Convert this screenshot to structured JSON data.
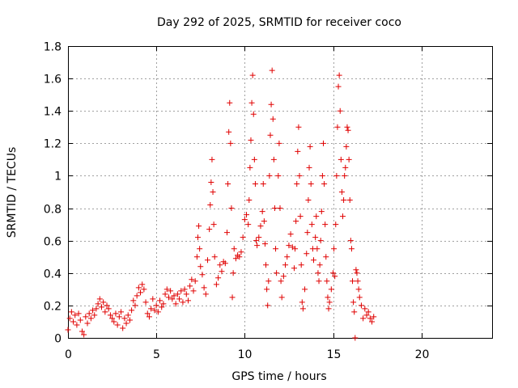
{
  "chart_data": {
    "type": "scatter",
    "title": "Day 292 of 2025, SRMTID for receiver coco",
    "xlabel": "GPS time / hours",
    "ylabel": "SRMTID / TECUs",
    "xlim": [
      0,
      24
    ],
    "ylim": [
      0,
      1.8
    ],
    "xticks": [
      0,
      5,
      10,
      15,
      20
    ],
    "xtick_labels": [
      "0",
      "5",
      "10",
      "15",
      "20"
    ],
    "yticks": [
      0,
      0.2,
      0.4,
      0.6,
      0.8,
      1.0,
      1.2,
      1.4,
      1.6,
      1.8
    ],
    "ytick_labels": [
      "0",
      "0.2",
      "0.4",
      "0.6",
      "0.8",
      "1",
      "1.2",
      "1.4",
      "1.6",
      "1.8"
    ],
    "grid": true,
    "marker": "+",
    "marker_color": "#e00000",
    "series": [
      {
        "name": "SRMTID",
        "points": [
          [
            0.0,
            0.05
          ],
          [
            0.1,
            0.12
          ],
          [
            0.2,
            0.16
          ],
          [
            0.3,
            0.1
          ],
          [
            0.4,
            0.14
          ],
          [
            0.5,
            0.08
          ],
          [
            0.6,
            0.15
          ],
          [
            0.7,
            0.11
          ],
          [
            0.8,
            0.04
          ],
          [
            0.9,
            0.02
          ],
          [
            1.0,
            0.13
          ],
          [
            1.1,
            0.09
          ],
          [
            1.2,
            0.15
          ],
          [
            1.3,
            0.12
          ],
          [
            1.4,
            0.17
          ],
          [
            1.5,
            0.14
          ],
          [
            1.6,
            0.18
          ],
          [
            1.7,
            0.21
          ],
          [
            1.8,
            0.24
          ],
          [
            1.9,
            0.19
          ],
          [
            2.0,
            0.22
          ],
          [
            2.1,
            0.16
          ],
          [
            2.2,
            0.2
          ],
          [
            2.3,
            0.18
          ],
          [
            2.4,
            0.14
          ],
          [
            2.5,
            0.12
          ],
          [
            2.6,
            0.1
          ],
          [
            2.7,
            0.15
          ],
          [
            2.8,
            0.08
          ],
          [
            2.9,
            0.13
          ],
          [
            3.0,
            0.16
          ],
          [
            3.1,
            0.06
          ],
          [
            3.2,
            0.12
          ],
          [
            3.3,
            0.09
          ],
          [
            3.4,
            0.14
          ],
          [
            3.5,
            0.11
          ],
          [
            3.6,
            0.17
          ],
          [
            3.7,
            0.23
          ],
          [
            3.8,
            0.2
          ],
          [
            3.9,
            0.26
          ],
          [
            4.0,
            0.31
          ],
          [
            4.1,
            0.28
          ],
          [
            4.2,
            0.33
          ],
          [
            4.3,
            0.3
          ],
          [
            4.4,
            0.22
          ],
          [
            4.5,
            0.15
          ],
          [
            4.6,
            0.13
          ],
          [
            4.7,
            0.18
          ],
          [
            4.8,
            0.24
          ],
          [
            4.9,
            0.17
          ],
          [
            5.0,
            0.2
          ],
          [
            5.1,
            0.16
          ],
          [
            5.2,
            0.23
          ],
          [
            5.3,
            0.19
          ],
          [
            5.4,
            0.21
          ],
          [
            5.5,
            0.27
          ],
          [
            5.6,
            0.3
          ],
          [
            5.7,
            0.25
          ],
          [
            5.8,
            0.29
          ],
          [
            5.9,
            0.24
          ],
          [
            6.0,
            0.26
          ],
          [
            6.1,
            0.21
          ],
          [
            6.2,
            0.27
          ],
          [
            6.3,
            0.24
          ],
          [
            6.4,
            0.29
          ],
          [
            6.5,
            0.22
          ],
          [
            6.6,
            0.3
          ],
          [
            6.7,
            0.27
          ],
          [
            6.8,
            0.23
          ],
          [
            6.9,
            0.32
          ],
          [
            7.0,
            0.36
          ],
          [
            7.1,
            0.29
          ],
          [
            7.2,
            0.35
          ],
          [
            7.3,
            0.5
          ],
          [
            7.35,
            0.62
          ],
          [
            7.4,
            0.69
          ],
          [
            7.45,
            0.55
          ],
          [
            7.5,
            0.44
          ],
          [
            7.6,
            0.39
          ],
          [
            7.7,
            0.31
          ],
          [
            7.8,
            0.27
          ],
          [
            7.9,
            0.48
          ],
          [
            8.0,
            0.67
          ],
          [
            8.05,
            0.82
          ],
          [
            8.1,
            0.96
          ],
          [
            8.15,
            1.1
          ],
          [
            8.2,
            0.9
          ],
          [
            8.25,
            0.7
          ],
          [
            8.3,
            0.5
          ],
          [
            8.4,
            0.33
          ],
          [
            8.5,
            0.37
          ],
          [
            8.6,
            0.45
          ],
          [
            8.7,
            0.41
          ],
          [
            8.8,
            0.47
          ],
          [
            8.9,
            0.46
          ],
          [
            9.0,
            0.65
          ],
          [
            9.05,
            0.95
          ],
          [
            9.1,
            1.27
          ],
          [
            9.15,
            1.45
          ],
          [
            9.2,
            1.2
          ],
          [
            9.25,
            0.8
          ],
          [
            9.3,
            0.25
          ],
          [
            9.35,
            0.4
          ],
          [
            9.4,
            0.55
          ],
          [
            9.5,
            0.49
          ],
          [
            9.6,
            0.51
          ],
          [
            9.7,
            0.5
          ],
          [
            9.8,
            0.53
          ],
          [
            9.9,
            0.62
          ],
          [
            10.0,
            0.73
          ],
          [
            10.1,
            0.76
          ],
          [
            10.2,
            0.7
          ],
          [
            10.25,
            0.85
          ],
          [
            10.3,
            1.05
          ],
          [
            10.35,
            1.22
          ],
          [
            10.4,
            1.45
          ],
          [
            10.45,
            1.62
          ],
          [
            10.5,
            1.38
          ],
          [
            10.55,
            1.1
          ],
          [
            10.6,
            0.95
          ],
          [
            10.65,
            0.6
          ],
          [
            10.7,
            0.57
          ],
          [
            10.8,
            0.62
          ],
          [
            10.9,
            0.69
          ],
          [
            11.0,
            0.78
          ],
          [
            11.05,
            0.95
          ],
          [
            11.1,
            0.72
          ],
          [
            11.15,
            0.58
          ],
          [
            11.2,
            0.45
          ],
          [
            11.25,
            0.3
          ],
          [
            11.3,
            0.2
          ],
          [
            11.35,
            0.35
          ],
          [
            11.4,
            1.0
          ],
          [
            11.45,
            1.25
          ],
          [
            11.5,
            1.44
          ],
          [
            11.55,
            1.65
          ],
          [
            11.6,
            1.35
          ],
          [
            11.65,
            1.1
          ],
          [
            11.7,
            0.8
          ],
          [
            11.75,
            0.55
          ],
          [
            11.8,
            0.4
          ],
          [
            11.9,
            1.0
          ],
          [
            11.95,
            1.2
          ],
          [
            12.0,
            0.8
          ],
          [
            12.05,
            0.35
          ],
          [
            12.1,
            0.25
          ],
          [
            12.2,
            0.38
          ],
          [
            12.3,
            0.45
          ],
          [
            12.4,
            0.5
          ],
          [
            12.5,
            0.57
          ],
          [
            12.6,
            0.64
          ],
          [
            12.7,
            0.56
          ],
          [
            12.8,
            0.43
          ],
          [
            12.85,
            0.55
          ],
          [
            12.9,
            0.72
          ],
          [
            12.95,
            0.95
          ],
          [
            13.0,
            1.15
          ],
          [
            13.05,
            1.3
          ],
          [
            13.1,
            1.0
          ],
          [
            13.15,
            0.75
          ],
          [
            13.2,
            0.45
          ],
          [
            13.25,
            0.22
          ],
          [
            13.3,
            0.18
          ],
          [
            13.4,
            0.3
          ],
          [
            13.5,
            0.52
          ],
          [
            13.55,
            0.65
          ],
          [
            13.6,
            0.85
          ],
          [
            13.65,
            1.05
          ],
          [
            13.7,
            1.18
          ],
          [
            13.75,
            0.95
          ],
          [
            13.8,
            0.7
          ],
          [
            13.85,
            0.55
          ],
          [
            13.9,
            0.48
          ],
          [
            14.0,
            0.62
          ],
          [
            14.05,
            0.75
          ],
          [
            14.1,
            0.55
          ],
          [
            14.15,
            0.4
          ],
          [
            14.2,
            0.35
          ],
          [
            14.25,
            0.45
          ],
          [
            14.3,
            0.6
          ],
          [
            14.35,
            0.78
          ],
          [
            14.4,
            1.0
          ],
          [
            14.45,
            1.2
          ],
          [
            14.5,
            0.95
          ],
          [
            14.55,
            0.7
          ],
          [
            14.6,
            0.5
          ],
          [
            14.65,
            0.35
          ],
          [
            14.7,
            0.25
          ],
          [
            14.75,
            0.18
          ],
          [
            14.8,
            0.22
          ],
          [
            14.9,
            0.3
          ],
          [
            15.0,
            0.4
          ],
          [
            15.05,
            0.55
          ],
          [
            15.1,
            0.38
          ],
          [
            15.15,
            0.7
          ],
          [
            15.2,
            1.0
          ],
          [
            15.25,
            1.3
          ],
          [
            15.3,
            1.55
          ],
          [
            15.35,
            1.62
          ],
          [
            15.4,
            1.4
          ],
          [
            15.45,
            1.1
          ],
          [
            15.5,
            0.9
          ],
          [
            15.55,
            0.75
          ],
          [
            15.6,
            0.85
          ],
          [
            15.65,
            1.0
          ],
          [
            15.7,
            1.05
          ],
          [
            15.75,
            1.18
          ],
          [
            15.8,
            1.3
          ],
          [
            15.85,
            1.28
          ],
          [
            15.9,
            1.1
          ],
          [
            15.95,
            0.85
          ],
          [
            16.0,
            0.6
          ],
          [
            16.05,
            0.55
          ],
          [
            16.1,
            0.35
          ],
          [
            16.15,
            0.22
          ],
          [
            16.2,
            0.16
          ],
          [
            16.25,
            0.0
          ],
          [
            16.3,
            0.42
          ],
          [
            16.35,
            0.4
          ],
          [
            16.4,
            0.35
          ],
          [
            16.45,
            0.3
          ],
          [
            16.5,
            0.25
          ],
          [
            16.6,
            0.2
          ],
          [
            16.7,
            0.12
          ],
          [
            16.8,
            0.18
          ],
          [
            16.9,
            0.14
          ],
          [
            17.0,
            0.16
          ],
          [
            17.1,
            0.12
          ],
          [
            17.2,
            0.1
          ],
          [
            17.3,
            0.13
          ]
        ]
      }
    ]
  }
}
